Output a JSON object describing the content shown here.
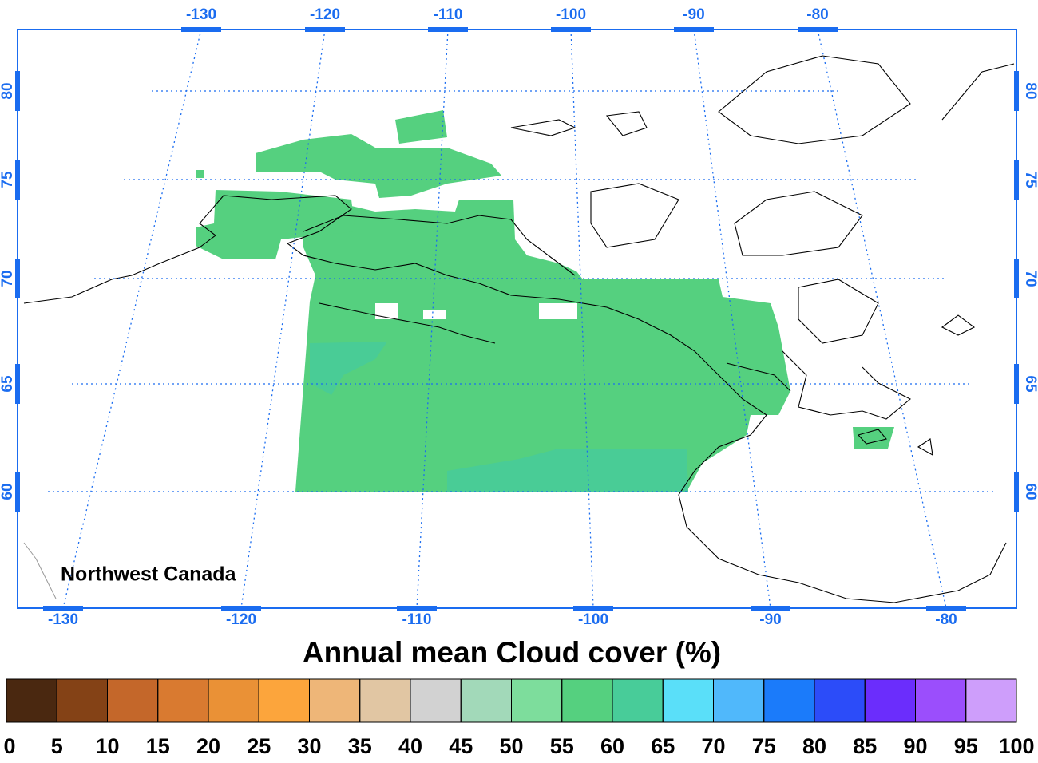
{
  "map": {
    "region_label": "Northwest Canada",
    "top_lon_labels": [
      -130,
      -120,
      -110,
      -100,
      -90,
      -80
    ],
    "bottom_lon_labels": [
      -130,
      -120,
      -110,
      -100,
      -90,
      -80
    ],
    "left_lat_labels": [
      80,
      75,
      70,
      65,
      60
    ],
    "right_lat_labels": [
      80,
      75,
      70,
      65,
      60
    ]
  },
  "colorbar": {
    "title": "Annual mean Cloud cover (%)",
    "ticks": [
      0,
      5,
      10,
      15,
      20,
      25,
      30,
      35,
      40,
      45,
      50,
      55,
      60,
      65,
      70,
      75,
      80,
      85,
      90,
      95,
      100
    ],
    "colors": [
      "#4a2810",
      "#844216",
      "#c4672a",
      "#d97a30",
      "#ea9136",
      "#fca53c",
      "#eeb678",
      "#e1c6a3",
      "#d2d2d2",
      "#a2d9b9",
      "#7ddd9c",
      "#55d07f",
      "#48cc99",
      "#5adff9",
      "#50b8fb",
      "#1b7bfa",
      "#2c4cf9",
      "#6b2dfc",
      "#9b4efc",
      "#ce9efb"
    ]
  }
}
